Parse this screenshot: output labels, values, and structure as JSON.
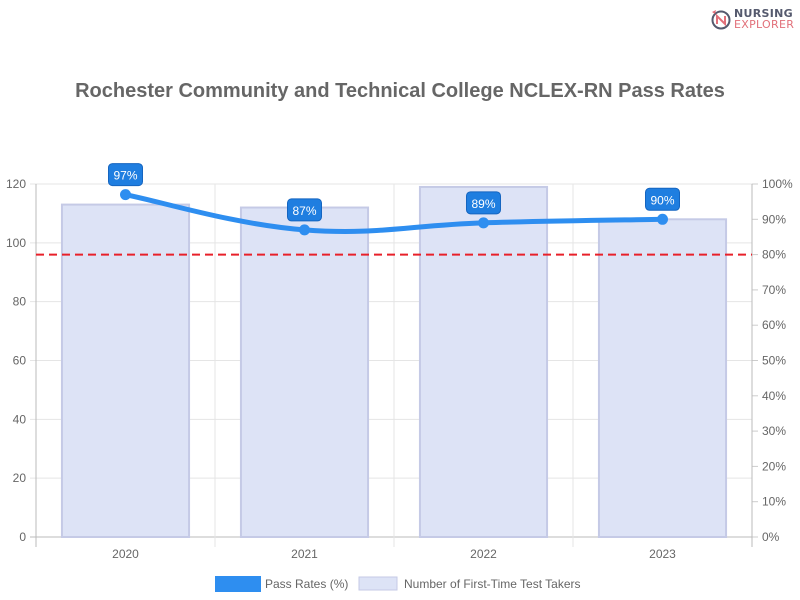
{
  "logo": {
    "line1": "NURSING",
    "line2": "EXPLORER",
    "mark": "NE"
  },
  "chart_data": {
    "type": "bar+line",
    "title": "Rochester Community and Technical College NCLEX-RN Pass Rates",
    "categories": [
      "2020",
      "2021",
      "2022",
      "2023"
    ],
    "series": [
      {
        "name": "Pass Rates (%)",
        "type": "line",
        "axis": "right",
        "values": [
          97,
          87,
          89,
          90
        ],
        "labels": [
          "97%",
          "87%",
          "89%",
          "90%"
        ],
        "color": "#2e8ef0"
      },
      {
        "name": "Number of First-Time Test Takers",
        "type": "bar",
        "axis": "left",
        "values": [
          113,
          112,
          119,
          108
        ],
        "color": "#dde3f6",
        "border": "#c5cae6"
      }
    ],
    "reference_line": {
      "value": 80,
      "axis": "right",
      "color": "#e8202a",
      "style": "dashed"
    },
    "left_axis": {
      "ylim": [
        0,
        120
      ],
      "ticks": [
        "0",
        "20",
        "40",
        "60",
        "80",
        "100",
        "120"
      ]
    },
    "right_axis": {
      "ylim": [
        0,
        100
      ],
      "ticks": [
        "0%",
        "10%",
        "20%",
        "30%",
        "40%",
        "50%",
        "60%",
        "70%",
        "80%",
        "90%",
        "100%"
      ]
    },
    "grid": true,
    "legend": "bottom"
  }
}
